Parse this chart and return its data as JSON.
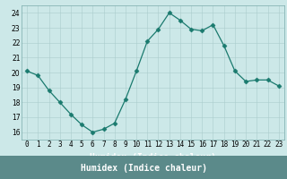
{
  "x": [
    0,
    1,
    2,
    3,
    4,
    5,
    6,
    7,
    8,
    9,
    10,
    11,
    12,
    13,
    14,
    15,
    16,
    17,
    18,
    19,
    20,
    21,
    22,
    23
  ],
  "y": [
    20.1,
    19.8,
    18.8,
    18.0,
    17.2,
    16.5,
    16.0,
    16.2,
    16.6,
    18.2,
    20.1,
    22.1,
    22.9,
    24.0,
    23.5,
    22.9,
    22.8,
    23.2,
    21.8,
    20.1,
    19.4,
    19.5,
    19.5,
    19.1
  ],
  "line_color": "#1a7a6e",
  "marker": "D",
  "marker_size": 2.5,
  "bg_color": "#cce8e8",
  "plot_bg_color": "#cce8e8",
  "grid_color": "#aacccc",
  "bottom_bar_color": "#5b8a8a",
  "xlabel": "Humidex (Indice chaleur)",
  "ylabel": "",
  "xlim": [
    -0.5,
    23.5
  ],
  "ylim": [
    15.5,
    24.5
  ],
  "yticks": [
    16,
    17,
    18,
    19,
    20,
    21,
    22,
    23,
    24
  ],
  "xtick_labels": [
    "0",
    "1",
    "2",
    "3",
    "4",
    "5",
    "6",
    "7",
    "8",
    "9",
    "10",
    "11",
    "12",
    "13",
    "14",
    "15",
    "16",
    "17",
    "18",
    "19",
    "20",
    "21",
    "22",
    "23"
  ],
  "xlabel_fontsize": 7,
  "tick_fontsize": 5.5
}
